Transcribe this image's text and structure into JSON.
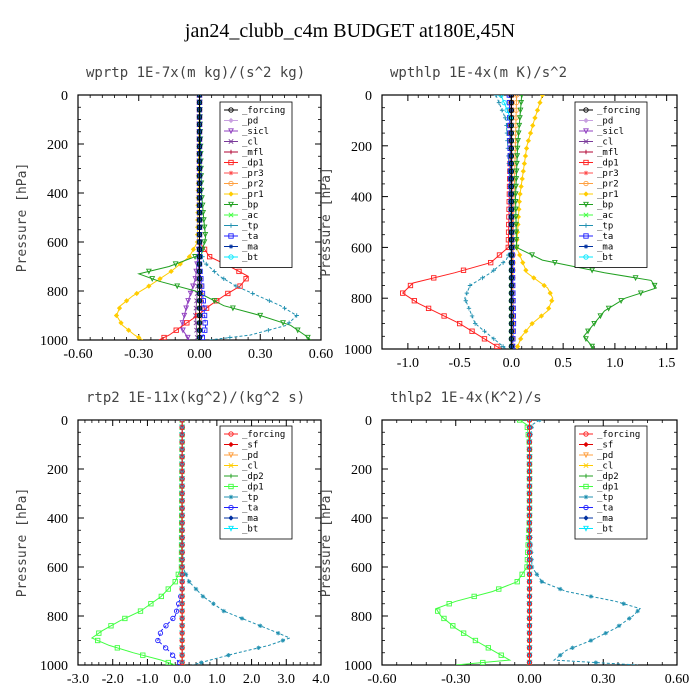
{
  "figure_title": "jan24_clubb_c4m  BUDGET at180E,45N",
  "chart_data": [
    {
      "type": "line",
      "title": "wprtp  1E-7x(m kg)/(s^2 kg)",
      "ylabel": "Pressure [hPa]",
      "xlim": [
        -0.6,
        0.6
      ],
      "ylim": [
        1000,
        0
      ],
      "xticks": [
        "-0.60",
        "-0.30",
        "0.00",
        "0.30",
        "0.60"
      ],
      "xtick_values": [
        -0.6,
        -0.3,
        0.0,
        0.3,
        0.6
      ],
      "yticks": [
        "0",
        "200",
        "400",
        "600",
        "800",
        "1000"
      ],
      "ytick_values": [
        0,
        200,
        400,
        600,
        800,
        1000
      ],
      "legend_position": "top-right",
      "series": [
        {
          "name": "_forcing",
          "color": "#000000",
          "p": [
            0,
            100,
            200,
            300,
            400,
            500,
            600,
            700,
            800,
            900,
            1000
          ],
          "x": [
            0,
            0,
            0,
            0,
            0,
            0,
            0,
            0,
            0,
            0,
            0
          ]
        },
        {
          "name": "_pd",
          "color": "#c8a0e0",
          "p": [
            0,
            300,
            600,
            800,
            1000
          ],
          "x": [
            0,
            0,
            0,
            0,
            0
          ]
        },
        {
          "name": "_sicl",
          "color": "#9040c0",
          "p": [
            0,
            600,
            750,
            850,
            950,
            1000
          ],
          "x": [
            0,
            0,
            -0.02,
            -0.06,
            -0.09,
            -0.05
          ]
        },
        {
          "name": "_cl",
          "color": "#7a3a9a",
          "p": [
            0,
            600,
            800,
            900,
            1000
          ],
          "x": [
            0,
            0,
            -0.01,
            -0.02,
            -0.01
          ]
        },
        {
          "name": "_mfl",
          "color": "#b00030",
          "p": [
            0,
            600,
            800,
            1000
          ],
          "x": [
            0,
            0,
            0,
            0
          ]
        },
        {
          "name": "_dp1",
          "color": "#ff2020",
          "p": [
            0,
            600,
            660,
            700,
            740,
            780,
            820,
            860,
            900,
            940,
            980,
            1000
          ],
          "x": [
            0,
            0,
            0.05,
            0.15,
            0.24,
            0.2,
            0.12,
            0.05,
            -0.01,
            -0.08,
            -0.15,
            -0.2
          ]
        },
        {
          "name": "_pr3",
          "color": "#ff5050",
          "p": [
            0,
            700,
            800,
            900,
            1000
          ],
          "x": [
            0,
            0,
            0.01,
            0.01,
            0
          ]
        },
        {
          "name": "_pr2",
          "color": "#ffa040",
          "p": [
            0,
            600,
            800,
            1000
          ],
          "x": [
            0,
            0,
            0,
            0
          ]
        },
        {
          "name": "_pr1",
          "color": "#ffcc00",
          "p": [
            0,
            600,
            660,
            720,
            780,
            820,
            860,
            900,
            940,
            980,
            1000
          ],
          "x": [
            0,
            -0.01,
            -0.05,
            -0.14,
            -0.25,
            -0.33,
            -0.39,
            -0.41,
            -0.38,
            -0.32,
            -0.28
          ]
        },
        {
          "name": "_bp",
          "color": "#20a020",
          "p": [
            0,
            400,
            500,
            580,
            650,
            700,
            730,
            760,
            800,
            860,
            900,
            940,
            980,
            1000
          ],
          "x": [
            0,
            0.01,
            0.02,
            0.03,
            0.01,
            -0.15,
            -0.3,
            -0.2,
            -0.02,
            0.12,
            0.3,
            0.45,
            0.52,
            0.55
          ]
        },
        {
          "name": "_ac",
          "color": "#40ff40",
          "p": [
            0,
            700,
            800,
            900,
            1000
          ],
          "x": [
            0,
            0,
            0,
            0,
            0
          ]
        },
        {
          "name": "_tp",
          "color": "#2090b0",
          "p": [
            0,
            600,
            680,
            740,
            780,
            820,
            860,
            900,
            940,
            980,
            1000
          ],
          "x": [
            0,
            0,
            0.02,
            0.1,
            0.18,
            0.29,
            0.4,
            0.48,
            0.43,
            0.25,
            0.05
          ]
        },
        {
          "name": "_ta",
          "color": "#2020ff",
          "p": [
            0,
            700,
            850,
            950,
            1000
          ],
          "x": [
            0,
            0,
            0.02,
            0.03,
            0.01
          ]
        },
        {
          "name": "_ma",
          "color": "#0030a0",
          "p": [
            0,
            600,
            800,
            1000
          ],
          "x": [
            0,
            0,
            0,
            0
          ]
        },
        {
          "name": "_bt",
          "color": "#00e8ff",
          "p": [
            0,
            500,
            1000
          ],
          "x": [
            0,
            0,
            0
          ]
        }
      ]
    },
    {
      "type": "line",
      "title": "wpthlp  1E-4x(m K)/s^2",
      "ylabel": "Pressure [hPa]",
      "xlim": [
        -1.25,
        1.6
      ],
      "ylim": [
        1000,
        0
      ],
      "xticks": [
        "-1.0",
        "-0.5",
        "0.0",
        "0.5",
        "1.0",
        "1.5"
      ],
      "xtick_values": [
        -1.0,
        -0.5,
        0.0,
        0.5,
        1.0,
        1.5
      ],
      "yticks": [
        "0",
        "200",
        "400",
        "600",
        "800",
        "1000"
      ],
      "ytick_values": [
        0,
        200,
        400,
        600,
        800,
        1000
      ],
      "legend_position": "top-right",
      "series": [
        {
          "name": "_forcing",
          "color": "#000000",
          "p": [
            0,
            200,
            400,
            600,
            800,
            1000
          ],
          "x": [
            0,
            0,
            0,
            0,
            0,
            0
          ]
        },
        {
          "name": "_pd",
          "color": "#c8a0e0",
          "p": [
            0,
            500,
            1000
          ],
          "x": [
            0,
            0,
            0
          ]
        },
        {
          "name": "_sicl",
          "color": "#9040c0",
          "p": [
            0,
            500,
            900,
            1000
          ],
          "x": [
            0,
            0,
            0.02,
            0.01
          ]
        },
        {
          "name": "_cl",
          "color": "#7a3a9a",
          "p": [
            0,
            500,
            1000
          ],
          "x": [
            0,
            0,
            0
          ]
        },
        {
          "name": "_mfl",
          "color": "#b00030",
          "p": [
            0,
            500,
            1000
          ],
          "x": [
            0,
            0,
            0
          ]
        },
        {
          "name": "_dp1",
          "color": "#ff2020",
          "p": [
            0,
            600,
            660,
            700,
            740,
            780,
            820,
            860,
            900,
            950,
            1000
          ],
          "x": [
            0,
            -0.03,
            -0.2,
            -0.55,
            -0.95,
            -1.05,
            -0.9,
            -0.7,
            -0.5,
            -0.3,
            -0.1
          ]
        },
        {
          "name": "_pr3",
          "color": "#ff5050",
          "p": [
            0,
            500,
            1000
          ],
          "x": [
            0,
            0.01,
            0
          ]
        },
        {
          "name": "_pr2",
          "color": "#ffa040",
          "p": [
            0,
            500,
            1000
          ],
          "x": [
            0.05,
            0.02,
            0.01
          ]
        },
        {
          "name": "_pr1",
          "color": "#ffcc00",
          "p": [
            0,
            100,
            200,
            400,
            600,
            700,
            760,
            800,
            850,
            900,
            950,
            1000
          ],
          "x": [
            0.3,
            0.22,
            0.15,
            0.08,
            0.05,
            0.15,
            0.35,
            0.4,
            0.35,
            0.2,
            0.1,
            0.05
          ]
        },
        {
          "name": "_bp",
          "color": "#20a020",
          "p": [
            0,
            200,
            400,
            600,
            650,
            700,
            730,
            760,
            800,
            850,
            900,
            950,
            1000
          ],
          "x": [
            0.1,
            0.06,
            0.04,
            0.05,
            0.3,
            0.9,
            1.35,
            1.4,
            1.1,
            0.9,
            0.8,
            0.7,
            0.8
          ]
        },
        {
          "name": "_ac",
          "color": "#40ff40",
          "p": [
            0,
            500,
            1000
          ],
          "x": [
            0,
            0,
            0
          ]
        },
        {
          "name": "_tp",
          "color": "#2090b0",
          "p": [
            0,
            100,
            300,
            600,
            650,
            700,
            750,
            800,
            850,
            900,
            950,
            1000
          ],
          "x": [
            -0.15,
            -0.05,
            -0.02,
            0,
            -0.05,
            -0.2,
            -0.4,
            -0.45,
            -0.4,
            -0.35,
            -0.2,
            -0.05
          ]
        },
        {
          "name": "_ta",
          "color": "#2020ff",
          "p": [
            0,
            500,
            900,
            1000
          ],
          "x": [
            -0.02,
            0,
            0.02,
            0.01
          ]
        },
        {
          "name": "_ma",
          "color": "#0030a0",
          "p": [
            0,
            500,
            1000
          ],
          "x": [
            0,
            0,
            0
          ]
        },
        {
          "name": "_bt",
          "color": "#00e8ff",
          "p": [
            0,
            100,
            500,
            1000
          ],
          "x": [
            -0.1,
            0,
            0,
            0
          ]
        }
      ]
    },
    {
      "type": "line",
      "title": "rtp2  1E-11x(kg^2)/(kg^2 s)",
      "ylabel": "Pressure [hPa]",
      "xlim": [
        -3.0,
        4.0
      ],
      "ylim": [
        1000,
        0
      ],
      "xticks": [
        "-3.0",
        "-2.0",
        "-1.0",
        "0.0",
        "1.0",
        "2.0",
        "3.0",
        "4.0"
      ],
      "xtick_values": [
        -3.0,
        -2.0,
        -1.0,
        0.0,
        1.0,
        2.0,
        3.0,
        4.0
      ],
      "yticks": [
        "0",
        "200",
        "400",
        "600",
        "800",
        "1000"
      ],
      "ytick_values": [
        0,
        200,
        400,
        600,
        800,
        1000
      ],
      "legend_position": "top-right",
      "series": [
        {
          "name": "_forcing",
          "color": "#ff2020",
          "p": [
            0,
            200,
            400,
            600,
            800,
            1000
          ],
          "x": [
            0,
            0,
            0,
            0,
            0,
            0
          ]
        },
        {
          "name": "_sf",
          "color": "#e00000",
          "p": [
            0,
            500,
            1000
          ],
          "x": [
            0,
            0,
            0
          ]
        },
        {
          "name": "_pd",
          "color": "#ffa040",
          "p": [
            0,
            500,
            1000
          ],
          "x": [
            0,
            0,
            0
          ]
        },
        {
          "name": "_cl",
          "color": "#ffcc00",
          "p": [
            0,
            500,
            1000
          ],
          "x": [
            0,
            0,
            0
          ]
        },
        {
          "name": "_dp2",
          "color": "#20a020",
          "p": [
            0,
            500,
            1000
          ],
          "x": [
            0,
            0,
            0
          ]
        },
        {
          "name": "_dp1",
          "color": "#40ff40",
          "p": [
            0,
            600,
            660,
            720,
            780,
            820,
            860,
            890,
            920,
            950,
            980,
            1000
          ],
          "x": [
            0,
            -0.02,
            -0.2,
            -0.6,
            -1.2,
            -1.8,
            -2.3,
            -2.6,
            -2.1,
            -1.4,
            -0.6,
            -0.2
          ]
        },
        {
          "name": "_tp",
          "color": "#2090b0",
          "p": [
            0,
            600,
            660,
            720,
            780,
            820,
            860,
            890,
            920,
            950,
            980,
            1000
          ],
          "x": [
            0,
            0.02,
            0.2,
            0.6,
            1.2,
            1.9,
            2.6,
            3.1,
            2.5,
            1.6,
            0.8,
            0.3
          ]
        },
        {
          "name": "_ta",
          "color": "#2020ff",
          "p": [
            0,
            700,
            800,
            860,
            900,
            940,
            980,
            1000
          ],
          "x": [
            0,
            0,
            -0.2,
            -0.6,
            -0.7,
            -0.4,
            -0.15,
            0
          ]
        },
        {
          "name": "_ma",
          "color": "#0030a0",
          "p": [
            0,
            500,
            1000
          ],
          "x": [
            0,
            0,
            0
          ]
        },
        {
          "name": "_bt",
          "color": "#00e8ff",
          "p": [
            0,
            500,
            1000
          ],
          "x": [
            0,
            0,
            0
          ]
        }
      ]
    },
    {
      "type": "line",
      "title": "thlp2  1E-4x(K^2)/s",
      "ylabel": "Pressure [hPa]",
      "xlim": [
        -0.6,
        0.6
      ],
      "ylim": [
        1000,
        0
      ],
      "xticks": [
        "-0.60",
        "-0.30",
        "0.00",
        "0.30",
        "0.60"
      ],
      "xtick_values": [
        -0.6,
        -0.3,
        0.0,
        0.3,
        0.6
      ],
      "yticks": [
        "0",
        "200",
        "400",
        "600",
        "800",
        "1000"
      ],
      "ytick_values": [
        0,
        200,
        400,
        600,
        800,
        1000
      ],
      "legend_position": "top-right",
      "series": [
        {
          "name": "_forcing",
          "color": "#ff2020",
          "p": [
            0,
            200,
            400,
            600,
            800,
            1000
          ],
          "x": [
            0,
            0,
            0,
            0,
            0,
            0
          ]
        },
        {
          "name": "_sf",
          "color": "#e00000",
          "p": [
            0,
            500,
            1000
          ],
          "x": [
            0,
            0,
            0
          ]
        },
        {
          "name": "_pd",
          "color": "#ffa040",
          "p": [
            0,
            500,
            1000
          ],
          "x": [
            0,
            0,
            0
          ]
        },
        {
          "name": "_cl",
          "color": "#ffcc00",
          "p": [
            0,
            500,
            1000
          ],
          "x": [
            0,
            0,
            0
          ]
        },
        {
          "name": "_dp2",
          "color": "#20a020",
          "p": [
            0,
            500,
            1000
          ],
          "x": [
            0,
            0,
            0
          ]
        },
        {
          "name": "_dp1",
          "color": "#40ff40",
          "p": [
            0,
            20,
            100,
            400,
            600,
            660,
            700,
            740,
            770,
            800,
            850,
            900,
            940,
            980,
            1000
          ],
          "x": [
            -0.04,
            -0.01,
            0,
            0,
            -0.01,
            -0.05,
            -0.15,
            -0.3,
            -0.38,
            -0.36,
            -0.3,
            -0.22,
            -0.15,
            -0.08,
            -0.3
          ]
        },
        {
          "name": "_tp",
          "color": "#2090b0",
          "p": [
            0,
            20,
            100,
            400,
            600,
            660,
            700,
            740,
            770,
            800,
            850,
            900,
            940,
            980,
            1000
          ],
          "x": [
            0.04,
            0.01,
            0,
            0,
            0.01,
            0.05,
            0.15,
            0.35,
            0.45,
            0.42,
            0.35,
            0.25,
            0.15,
            0.1,
            0.44
          ]
        },
        {
          "name": "_ta",
          "color": "#2020ff",
          "p": [
            0,
            500,
            1000
          ],
          "x": [
            0,
            0,
            0
          ]
        },
        {
          "name": "_ma",
          "color": "#0030a0",
          "p": [
            0,
            500,
            1000
          ],
          "x": [
            0,
            0,
            0
          ]
        },
        {
          "name": "_bt",
          "color": "#00e8ff",
          "p": [
            0,
            500,
            1000
          ],
          "x": [
            0,
            0,
            0
          ]
        }
      ]
    }
  ]
}
